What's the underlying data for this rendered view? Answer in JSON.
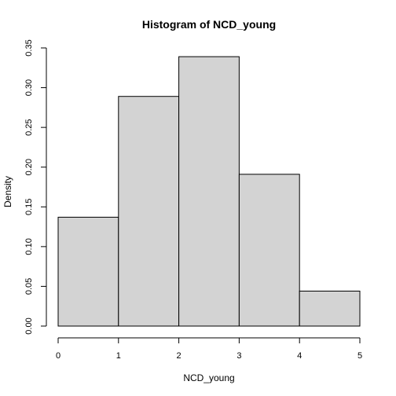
{
  "chart_data": {
    "type": "bar",
    "title": "Histogram of NCD_young",
    "xlabel": "NCD_young",
    "ylabel": "Density",
    "bins": [
      {
        "x0": 0,
        "x1": 1,
        "density": 0.137
      },
      {
        "x0": 1,
        "x1": 2,
        "density": 0.289
      },
      {
        "x0": 2,
        "x1": 3,
        "density": 0.339
      },
      {
        "x0": 3,
        "x1": 4,
        "density": 0.191
      },
      {
        "x0": 4,
        "x1": 5,
        "density": 0.044
      }
    ],
    "xlim": [
      0,
      5
    ],
    "ylim": [
      0,
      0.35
    ],
    "xticks": [
      "0",
      "1",
      "2",
      "3",
      "4",
      "5"
    ],
    "yticks": [
      "0.00",
      "0.05",
      "0.10",
      "0.15",
      "0.20",
      "0.25",
      "0.30",
      "0.35"
    ],
    "grid": false,
    "bar_color": "#d3d3d3",
    "edge_color": "#000000"
  }
}
